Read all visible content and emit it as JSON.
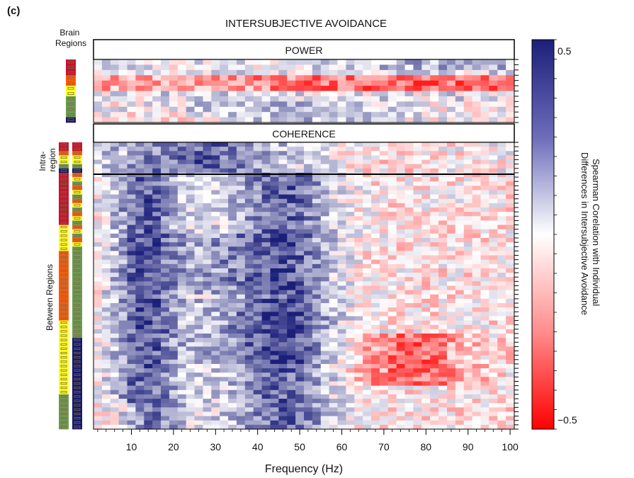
{
  "panel_label": "(c)",
  "chart_data": {
    "type": "heatmap",
    "title": "INTERSUBJECTIVE AVOIDANCE",
    "xlabel": "Frequency (Hz)",
    "x_range": [
      1,
      101
    ],
    "x_ticks": [
      10,
      20,
      30,
      40,
      50,
      60,
      70,
      80,
      90,
      100
    ],
    "sections": [
      {
        "key": "power",
        "label": "POWER",
        "rows": 12
      },
      {
        "key": "coherence",
        "label": "COHERENCE",
        "rows": 66
      }
    ],
    "row_group_labels": {
      "brain_regions": "Brain Regions",
      "intra_region": "Intra-region",
      "between_regions": "Between Regions"
    },
    "colorbar": {
      "label_line1": "Spearman Corelation with Individual",
      "label_line2": "Differences in Intersubjective Avoidance",
      "vmin": -0.5,
      "vmax": 0.5,
      "tick_top": "0.5",
      "tick_bottom": "−0.5",
      "color_high": "#1c1f7a",
      "color_mid": "#ffffff",
      "color_low": "#ff0000"
    },
    "region_colors": [
      "#c8102e",
      "#ff5a0a",
      "#ffff22",
      "#6d9a52",
      "#15186e"
    ],
    "cell_value_note": "Per-cell correlation values (approx., -0.5 to 0.5): positive bands at 5-25 Hz and 35-55 Hz in coherence rows; negative values in power rows 4-6 and coherence rows at 65-85 Hz."
  }
}
